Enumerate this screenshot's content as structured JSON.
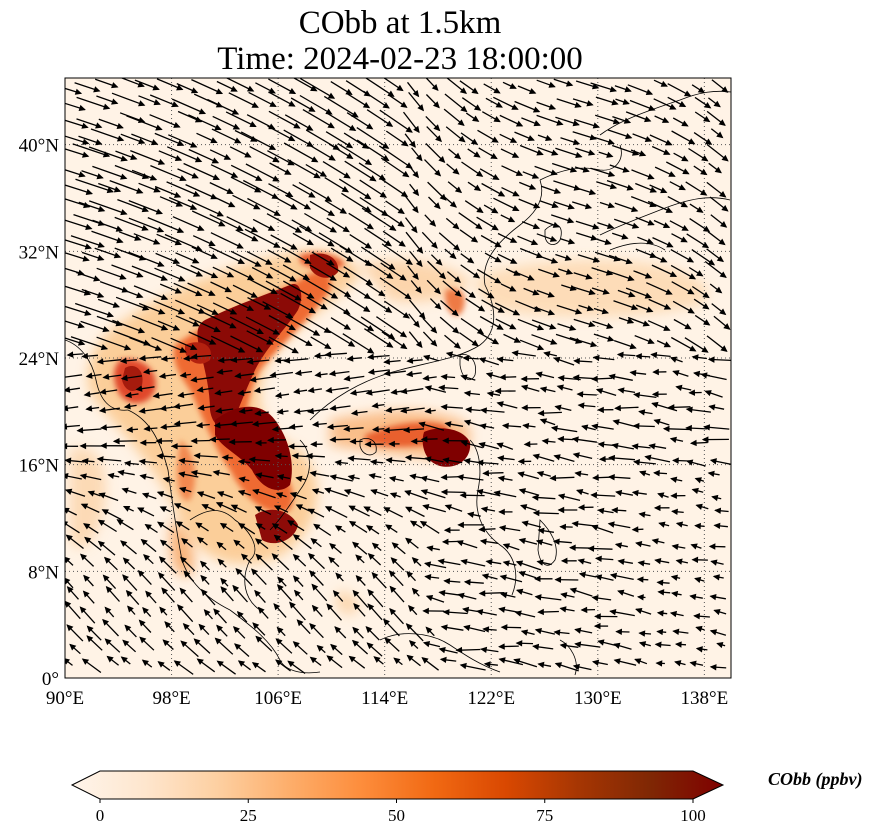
{
  "title": {
    "line1": "CObb at 1.5km",
    "line2": "Time: 2024-02-23 18:00:00"
  },
  "map": {
    "extent": {
      "lon": [
        90,
        140
      ],
      "lat": [
        0,
        45
      ]
    },
    "lon_ticks": [
      {
        "value": 90,
        "label": "90°E"
      },
      {
        "value": 98,
        "label": "98°E"
      },
      {
        "value": 106,
        "label": "106°E"
      },
      {
        "value": 114,
        "label": "114°E"
      },
      {
        "value": 122,
        "label": "122°E"
      },
      {
        "value": 130,
        "label": "130°E"
      },
      {
        "value": 138,
        "label": "138°E"
      }
    ],
    "lat_ticks": [
      {
        "value": 0,
        "label": "0°"
      },
      {
        "value": 8,
        "label": "8°N"
      },
      {
        "value": 16,
        "label": "16°N"
      },
      {
        "value": 24,
        "label": "24°N"
      },
      {
        "value": 32,
        "label": "32°N"
      },
      {
        "value": 40,
        "label": "40°N"
      }
    ],
    "gridlines": "dotted",
    "plume_colors": [
      "#fdd4a5",
      "#f7924a",
      "#d7301f",
      "#7f0000"
    ]
  },
  "colorbar": {
    "label": "CObb (ppbv)",
    "ticks": [
      0,
      25,
      50,
      75,
      100
    ],
    "tick_labels": [
      "0",
      "25",
      "50",
      "75",
      "100"
    ],
    "colors": [
      "#fff5eb",
      "#fee6ce",
      "#fdd0a2",
      "#fdae6b",
      "#fd8d3c",
      "#f16913",
      "#d94801",
      "#a63603",
      "#7f2704",
      "#7f0000"
    ],
    "extend": "both"
  }
}
